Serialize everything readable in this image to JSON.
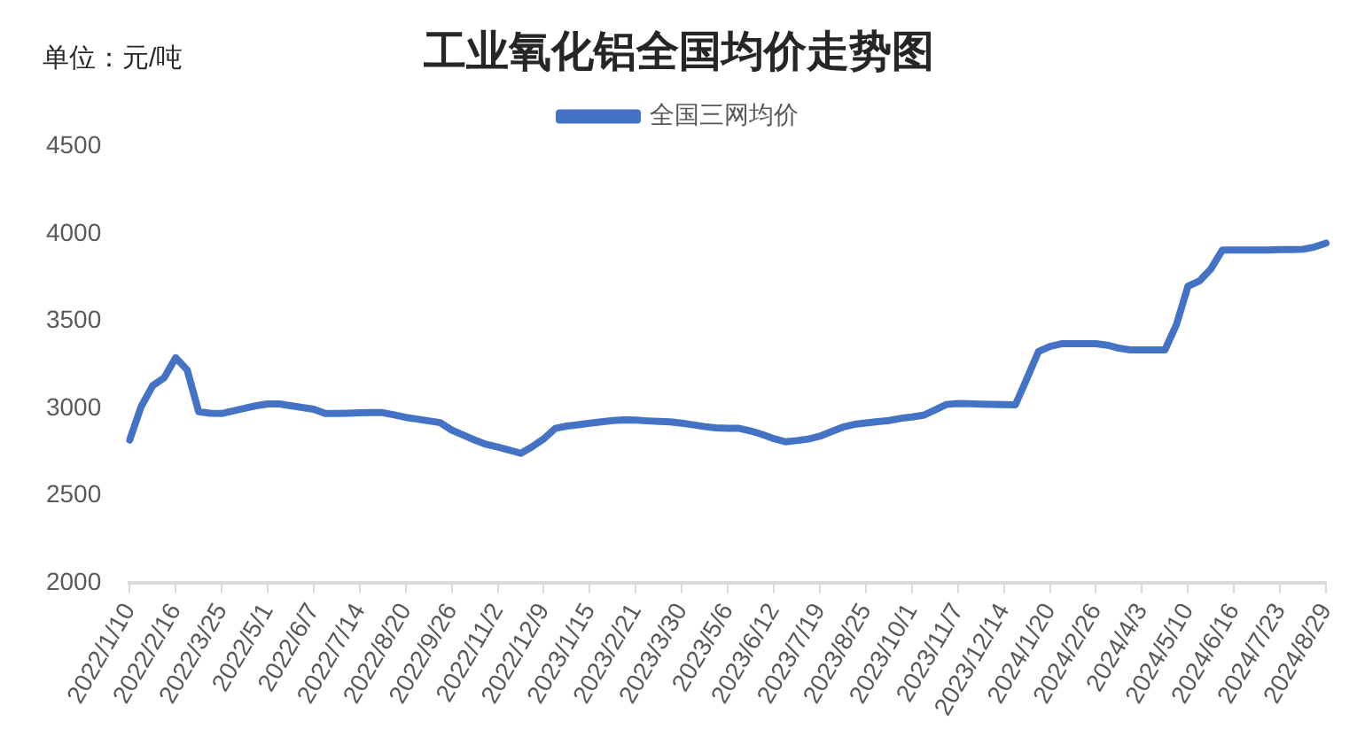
{
  "chart_data": {
    "type": "line",
    "title": "工业氧化铝全国均价走势图",
    "annotations": [
      "单位：元/吨"
    ],
    "categories": [
      "2022/1/10",
      null,
      null,
      null,
      "2022/2/16",
      null,
      null,
      null,
      "2022/3/25",
      null,
      null,
      null,
      "2022/5/1",
      null,
      null,
      null,
      "2022/6/7",
      null,
      null,
      null,
      "2022/7/14",
      null,
      null,
      null,
      "2022/8/20",
      null,
      null,
      null,
      "2022/9/26",
      null,
      null,
      null,
      "2022/11/2",
      null,
      null,
      null,
      "2022/12/9",
      null,
      null,
      null,
      "2023/1/15",
      null,
      null,
      null,
      "2023/2/21",
      null,
      null,
      null,
      "2023/3/30",
      null,
      null,
      null,
      "2023/5/6",
      null,
      null,
      null,
      "2023/6/12",
      null,
      null,
      null,
      "2023/7/19",
      null,
      null,
      null,
      "2023/8/25",
      null,
      null,
      null,
      "2023/10/1",
      null,
      null,
      null,
      "2023/11/7",
      null,
      null,
      null,
      "2023/12/14",
      null,
      null,
      null,
      "2024/1/20",
      null,
      null,
      null,
      "2024/2/26",
      null,
      null,
      null,
      "2024/4/3",
      null,
      null,
      null,
      "2024/5/10",
      null,
      null,
      null,
      "2024/6/16",
      null,
      null,
      null,
      "2024/7/23",
      null,
      null,
      null,
      "2024/8/29"
    ],
    "series": [
      {
        "name": "全国三网均价",
        "color": "#4472c4",
        "values": [
          2818,
          3010,
          3130,
          3175,
          3290,
          3220,
          2980,
          2972,
          2970,
          2985,
          3000,
          3015,
          3025,
          3025,
          3015,
          3005,
          2995,
          2970,
          2970,
          2972,
          2974,
          2975,
          2975,
          2962,
          2948,
          2938,
          2928,
          2918,
          2875,
          2847,
          2818,
          2793,
          2778,
          2760,
          2742,
          2780,
          2825,
          2885,
          2898,
          2906,
          2915,
          2922,
          2930,
          2934,
          2932,
          2928,
          2925,
          2922,
          2915,
          2905,
          2895,
          2888,
          2886,
          2885,
          2870,
          2850,
          2826,
          2808,
          2815,
          2824,
          2840,
          2866,
          2892,
          2908,
          2916,
          2924,
          2930,
          2942,
          2950,
          2960,
          2990,
          3022,
          3028,
          3026,
          3024,
          3022,
          3021,
          3020,
          3170,
          3325,
          3355,
          3370,
          3370,
          3370,
          3370,
          3362,
          3345,
          3335,
          3335,
          3335,
          3335,
          3480,
          3700,
          3730,
          3800,
          3908,
          3908,
          3908,
          3908,
          3908,
          3910,
          3910,
          3912,
          3925,
          3947
        ]
      }
    ],
    "ylim": [
      2000,
      4500
    ],
    "yticks": [
      2000,
      2500,
      3000,
      3500,
      4000,
      4500
    ],
    "grid": false,
    "legend": "top",
    "marker": "none",
    "line_style": "solid"
  }
}
